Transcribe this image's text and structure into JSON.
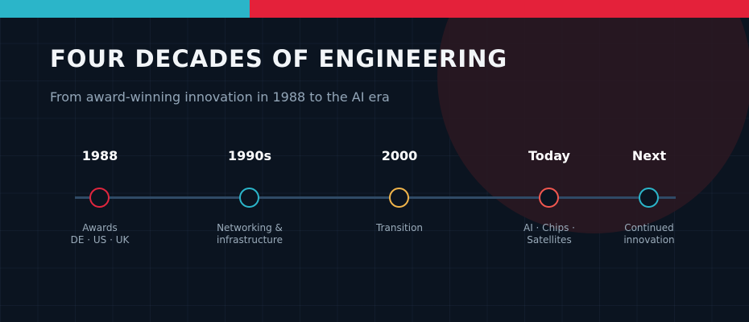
{
  "colors": {
    "background": "#0b1420",
    "topbar_left": "#2bb5c9",
    "topbar_right": "#e4213a",
    "track": "#2f4a66"
  },
  "header": {
    "title": "FOUR DECADES OF ENGINEERING",
    "subtitle": "From award-winning innovation in 1988 to the AI era"
  },
  "timeline": [
    {
      "label": "1988",
      "desc_line1": "Awards",
      "desc_line2": "DE · US · UK",
      "color": "#e0263e"
    },
    {
      "label": "1990s",
      "desc_line1": "Networking &",
      "desc_line2": "infrastructure",
      "color": "#2bb5c9"
    },
    {
      "label": "2000",
      "desc_line1": "Transition",
      "desc_line2": "",
      "color": "#f0b44a"
    },
    {
      "label": "Today",
      "desc_line1": "AI · Chips ·",
      "desc_line2": "Satellites",
      "color": "#f0574f"
    },
    {
      "label": "Next",
      "desc_line1": "Continued",
      "desc_line2": "innovation",
      "color": "#2bb5c9"
    }
  ]
}
